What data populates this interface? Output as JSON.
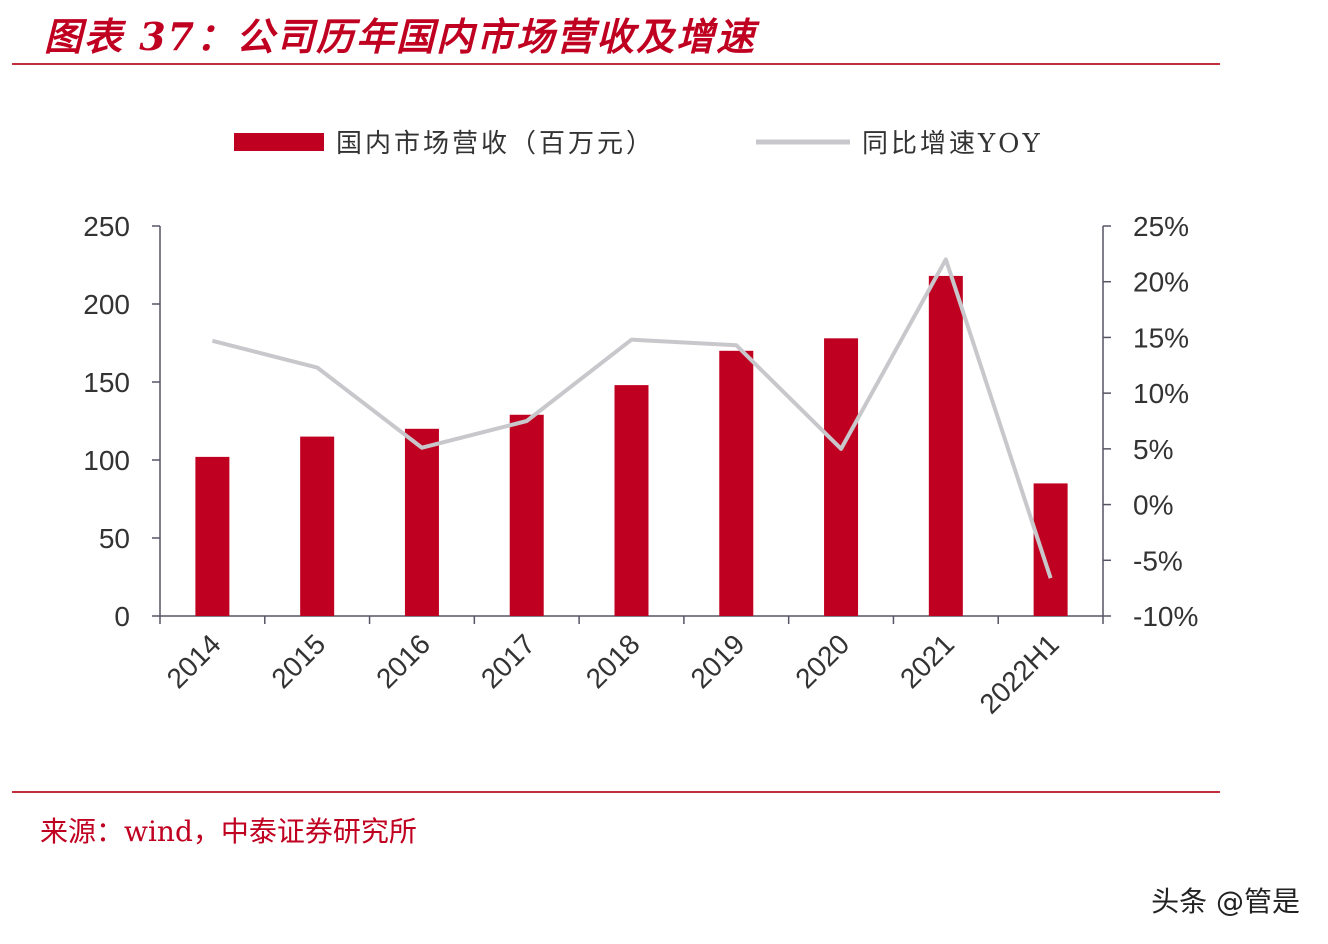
{
  "title": "图表 37：公司历年国内市场营收及增速",
  "source": "来源：wind，中泰证券研究所",
  "watermark": "头条 @管是",
  "colors": {
    "bar": "#c00020",
    "line": "#c8c8cc",
    "title": "#c00020",
    "axis": "#555566"
  },
  "chart_data": {
    "type": "bar+line",
    "title": "",
    "categories": [
      "2014",
      "2015",
      "2016",
      "2017",
      "2018",
      "2019",
      "2020",
      "2021",
      "2022H1"
    ],
    "series": [
      {
        "name": "国内市场营收（百万元）",
        "type": "bar",
        "axis": "left",
        "values": [
          102,
          115,
          120,
          129,
          148,
          170,
          178,
          218,
          85
        ]
      },
      {
        "name": "同比增速YOY",
        "type": "line",
        "axis": "right",
        "values": [
          14.7,
          12.3,
          5.1,
          7.5,
          14.8,
          14.3,
          5.0,
          22.0,
          -6.6
        ]
      }
    ],
    "left_axis": {
      "ylim": [
        0,
        250
      ],
      "ticks": [
        "0",
        "50",
        "100",
        "150",
        "200",
        "250"
      ]
    },
    "right_axis": {
      "ylim": [
        -10,
        25
      ],
      "ticks": [
        "-10%",
        "-5%",
        "0%",
        "5%",
        "10%",
        "15%",
        "20%",
        "25%"
      ]
    },
    "legend_placement": "top",
    "grid": false
  }
}
